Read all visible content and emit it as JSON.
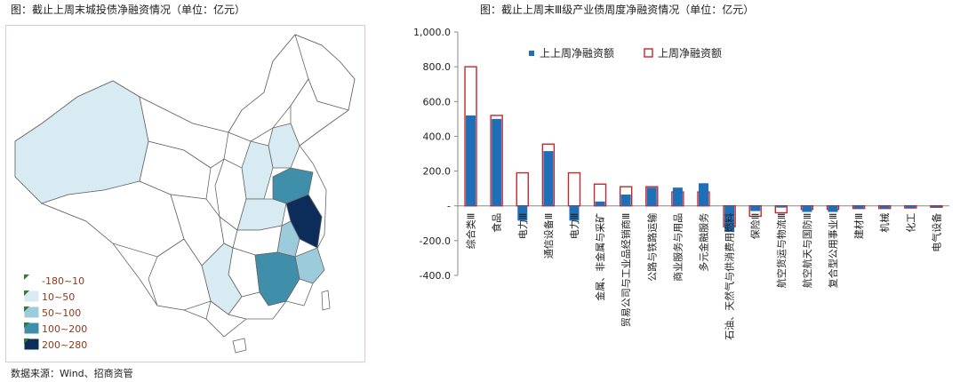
{
  "left_title": "图：截止上周末城投债净融资情况（单位：亿元）",
  "right_title": "图：截止上周末Ⅲ级产业债周度净融资情况（单位：亿元）",
  "source": "数据来源：Wind、招商资管",
  "map": {
    "legend": [
      {
        "label": "-180~10",
        "color": "#ffffff"
      },
      {
        "label": "10~50",
        "color": "#d8ebf3"
      },
      {
        "label": "50~100",
        "color": "#9ccbdc"
      },
      {
        "label": "100~200",
        "color": "#3f8faa"
      },
      {
        "label": "200~280",
        "color": "#0c2d5a"
      }
    ]
  },
  "chart_data": {
    "type": "bar",
    "title": "图：截止上周末Ⅲ级产业债周度净融资情况（单位：亿元）",
    "ylim": [
      -400,
      1000
    ],
    "yticks": [
      "1,000.0",
      "800.0",
      "600.0",
      "400.0",
      "200.0",
      "-",
      "-200.0",
      "-400.0"
    ],
    "categories": [
      "综合类Ⅲ",
      "食品",
      "电力Ⅲ",
      "通信设备Ⅲ",
      "电力Ⅲ",
      "金属、非金属与采矿",
      "贸易公司与工业品经销商Ⅲ",
      "公路与铁路运输",
      "商业服务与用品",
      "多元金融服务",
      "石油、天然气与供消费用燃料",
      "保险Ⅲ",
      "航空货运与物流Ⅲ",
      "航空航天与国防Ⅲ",
      "复合型公用事业Ⅲ",
      "建材Ⅲ",
      "机械",
      "化工",
      "电气设备"
    ],
    "series": [
      {
        "name": "上上周净融资额",
        "color": "#1f6fb8",
        "values": [
          520,
          500,
          -85,
          315,
          -85,
          25,
          65,
          105,
          105,
          130,
          -150,
          -30,
          -10,
          -35,
          -35,
          -15,
          -15,
          -12,
          -8
        ]
      },
      {
        "name": "上周净融资额",
        "color": "#c0282d",
        "values": [
          800,
          520,
          190,
          355,
          190,
          125,
          110,
          110,
          80,
          80,
          -120,
          -60,
          -40,
          -20,
          -20,
          -15,
          -15,
          -12,
          -8
        ]
      }
    ]
  }
}
